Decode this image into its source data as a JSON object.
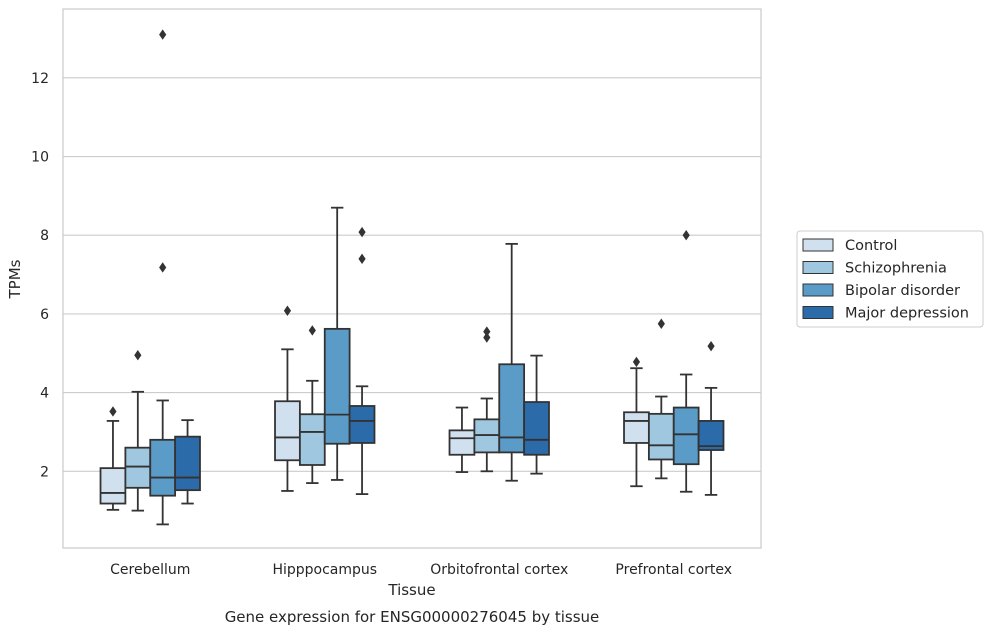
{
  "chart_data": {
    "type": "box",
    "title": "",
    "caption": "Gene expression for ENSG00000276045 by tissue",
    "xlabel": "Tissue",
    "ylabel": "TPMs",
    "ylim": [
      0.05,
      13.75
    ],
    "yticks": [
      2,
      4,
      6,
      8,
      10,
      12
    ],
    "grid": true,
    "legend_position": "right",
    "categories": [
      "Cerebellum",
      "Hipppocampus",
      "Orbitofrontal cortex",
      "Prefrontal cortex"
    ],
    "series": [
      {
        "name": "Control",
        "color": "#d1e0ef",
        "boxes": [
          {
            "whislo": 1.02,
            "q1": 1.18,
            "med": 1.45,
            "q3": 2.08,
            "whishi": 3.28,
            "fliers": [
              3.52
            ]
          },
          {
            "whislo": 1.5,
            "q1": 2.28,
            "med": 2.86,
            "q3": 3.78,
            "whishi": 5.1,
            "fliers": [
              6.08
            ]
          },
          {
            "whislo": 1.98,
            "q1": 2.42,
            "med": 2.84,
            "q3": 3.04,
            "whishi": 3.62,
            "fliers": []
          },
          {
            "whislo": 1.62,
            "q1": 2.72,
            "med": 3.28,
            "q3": 3.5,
            "whishi": 4.62,
            "fliers": [
              4.78
            ]
          }
        ]
      },
      {
        "name": "Schizophrenia",
        "color": "#9fc7df",
        "boxes": [
          {
            "whislo": 1.0,
            "q1": 1.58,
            "med": 2.12,
            "q3": 2.6,
            "whishi": 4.02,
            "fliers": [
              4.95
            ]
          },
          {
            "whislo": 1.7,
            "q1": 2.16,
            "med": 3.0,
            "q3": 3.45,
            "whishi": 4.3,
            "fliers": [
              5.58
            ]
          },
          {
            "whislo": 2.0,
            "q1": 2.48,
            "med": 2.92,
            "q3": 3.32,
            "whishi": 3.85,
            "fliers": [
              5.4,
              5.55
            ]
          },
          {
            "whislo": 1.82,
            "q1": 2.3,
            "med": 2.66,
            "q3": 3.46,
            "whishi": 3.9,
            "fliers": [
              5.75
            ]
          }
        ]
      },
      {
        "name": "Bipolar disorder",
        "color": "#5b9bc8",
        "boxes": [
          {
            "whislo": 0.65,
            "q1": 1.38,
            "med": 1.84,
            "q3": 2.8,
            "whishi": 3.8,
            "fliers": [
              7.18,
              13.1
            ]
          },
          {
            "whislo": 1.78,
            "q1": 2.7,
            "med": 3.44,
            "q3": 5.62,
            "whishi": 8.7,
            "fliers": []
          },
          {
            "whislo": 1.76,
            "q1": 2.48,
            "med": 2.86,
            "q3": 4.72,
            "whishi": 7.78,
            "fliers": []
          },
          {
            "whislo": 1.48,
            "q1": 2.18,
            "med": 2.94,
            "q3": 3.62,
            "whishi": 4.46,
            "fliers": [
              8.0
            ]
          }
        ]
      },
      {
        "name": "Major depression",
        "color": "#2c6ba9",
        "boxes": [
          {
            "whislo": 1.18,
            "q1": 1.52,
            "med": 1.84,
            "q3": 2.88,
            "whishi": 3.3,
            "fliers": []
          },
          {
            "whislo": 1.42,
            "q1": 2.72,
            "med": 3.28,
            "q3": 3.66,
            "whishi": 4.16,
            "fliers": [
              7.4,
              8.08
            ]
          },
          {
            "whislo": 1.94,
            "q1": 2.42,
            "med": 2.8,
            "q3": 3.76,
            "whishi": 4.94,
            "fliers": []
          },
          {
            "whislo": 1.4,
            "q1": 2.54,
            "med": 2.64,
            "q3": 3.28,
            "whishi": 4.12,
            "fliers": [
              5.18
            ]
          }
        ]
      }
    ]
  }
}
